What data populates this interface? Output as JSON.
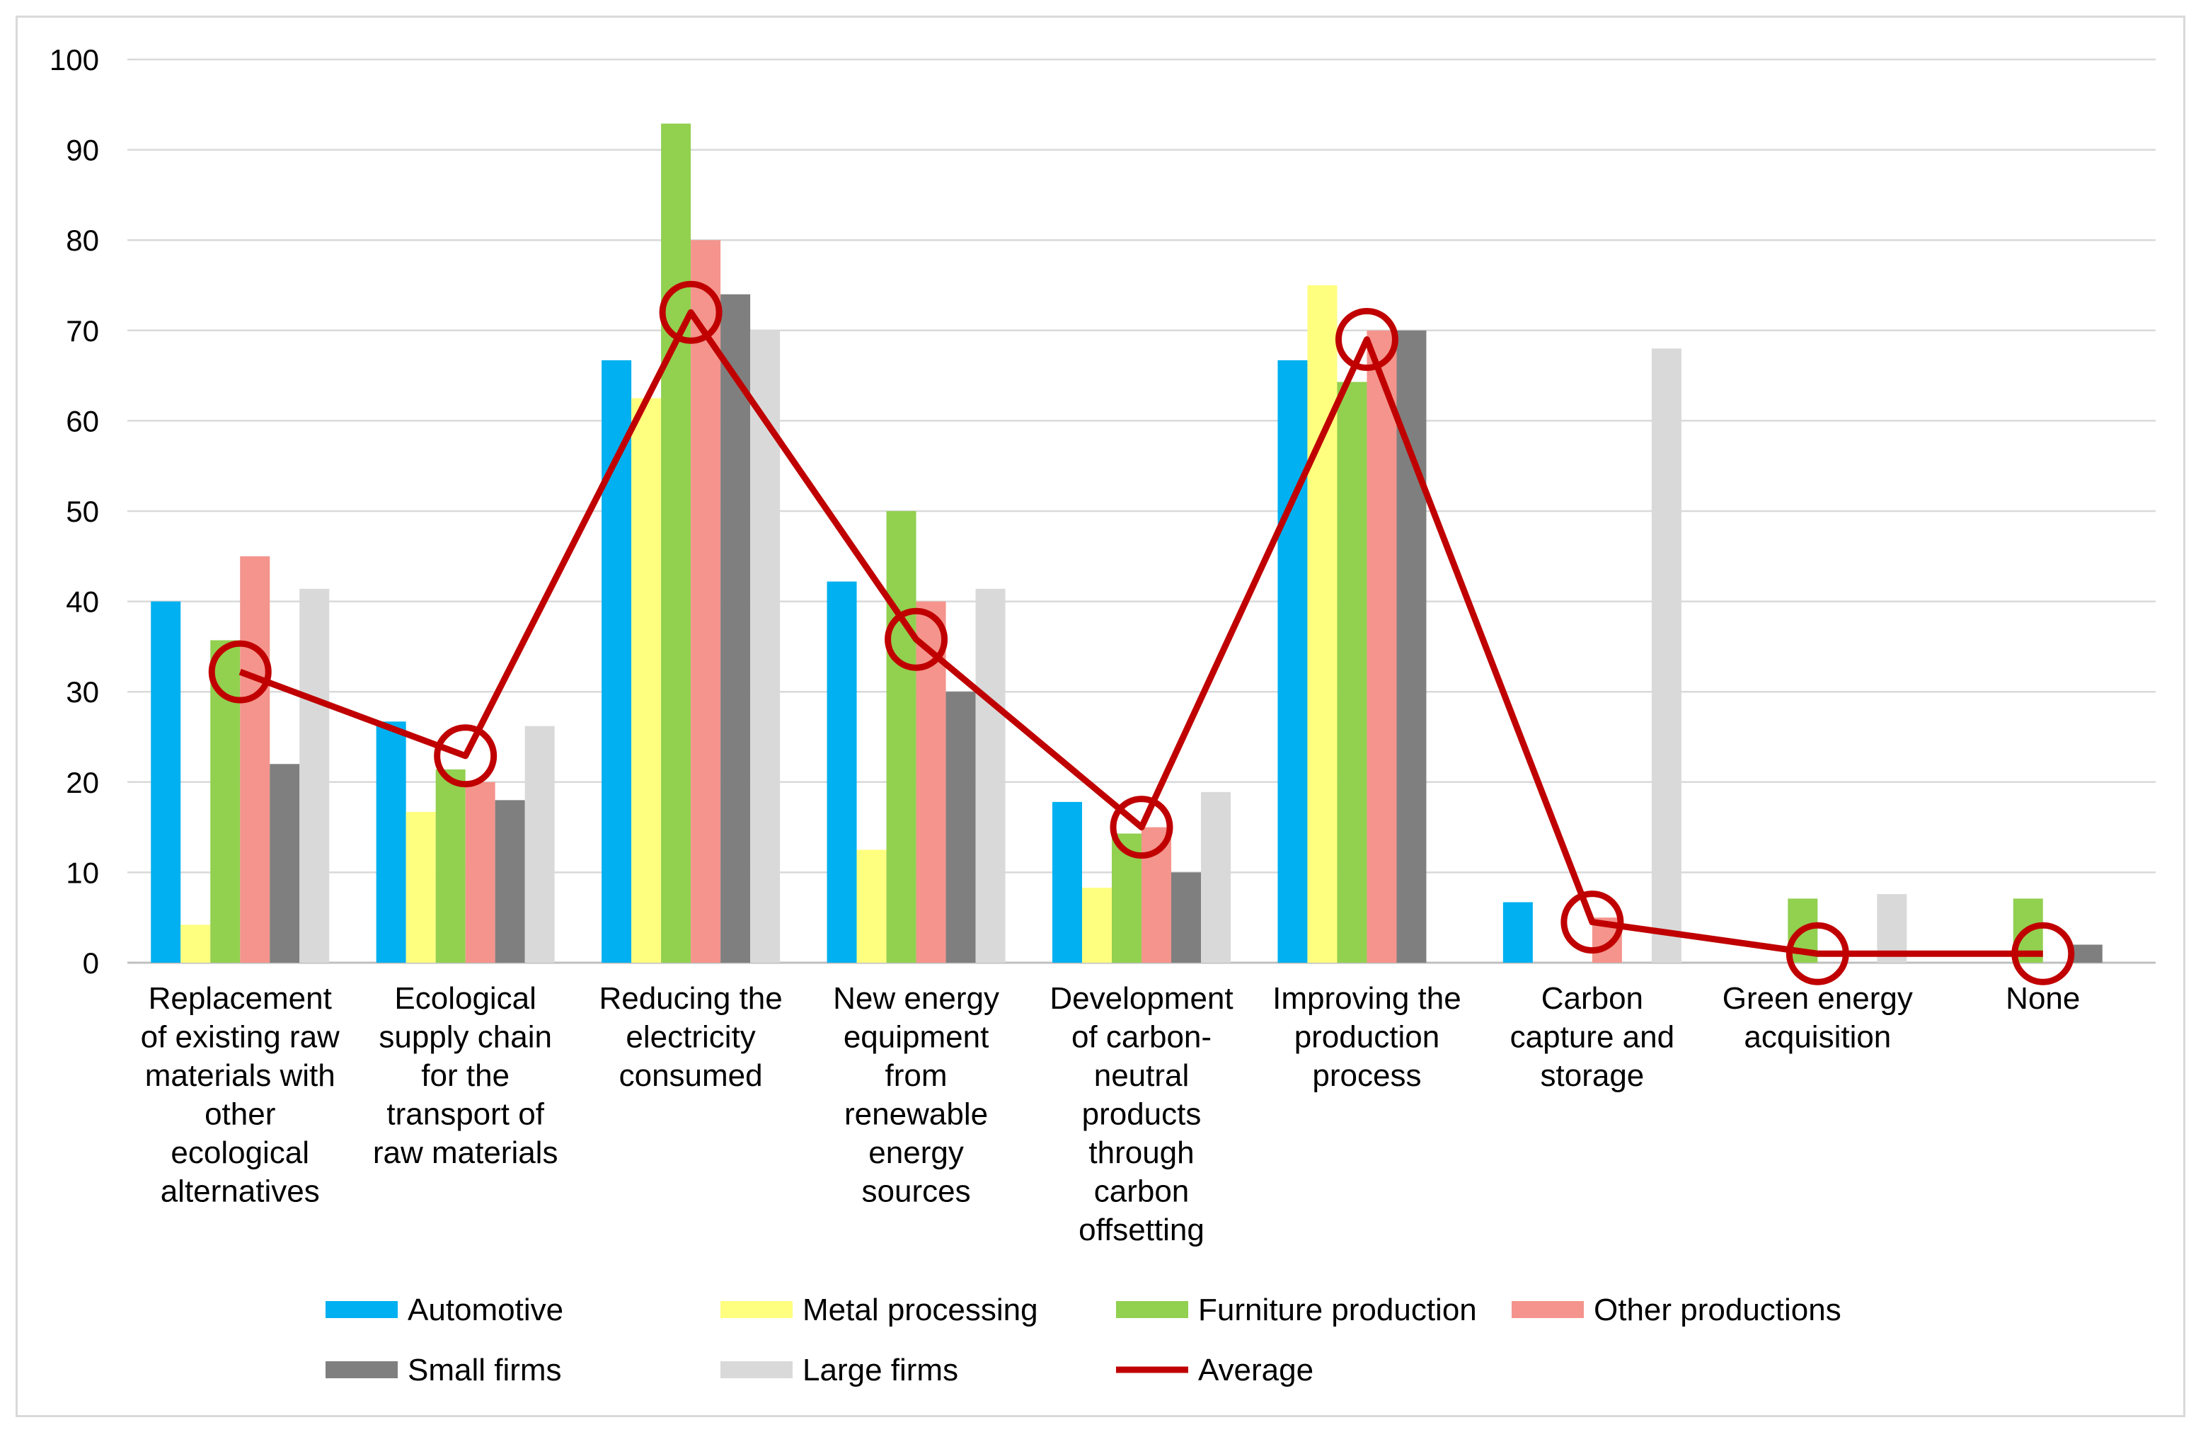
{
  "chart_data": {
    "type": "bar",
    "title": "",
    "xlabel": "",
    "ylabel": "",
    "ylim": [
      0,
      100
    ],
    "yticks": [
      "0",
      "10",
      "20",
      "30",
      "40",
      "50",
      "60",
      "70",
      "80",
      "90",
      "100"
    ],
    "grid": true,
    "legend_position": "bottom",
    "categories": [
      [
        "Replacement",
        "of existing raw",
        "materials with",
        "other",
        "ecological",
        "alternatives"
      ],
      [
        "Ecological",
        "supply chain",
        "for the",
        "transport of",
        "raw materials"
      ],
      [
        "Reducing the",
        "electricity",
        "consumed"
      ],
      [
        "New energy",
        "equipment",
        "from",
        "renewable",
        "energy",
        "sources"
      ],
      [
        "Development",
        "of carbon-",
        "neutral",
        "products",
        "through",
        "carbon",
        "offsetting"
      ],
      [
        "Improving the",
        "production",
        "process"
      ],
      [
        "Carbon",
        "capture and",
        "storage"
      ],
      [
        "Green energy",
        "acquisition"
      ],
      [
        "None"
      ]
    ],
    "series": [
      {
        "name": "Automotive",
        "color": "#00b0f0",
        "values": [
          40,
          26.7,
          66.7,
          42.2,
          17.8,
          66.7,
          6.7,
          0,
          0
        ]
      },
      {
        "name": "Metal processing",
        "color": "#ffff7f",
        "values": [
          4.2,
          16.7,
          62.5,
          12.5,
          8.3,
          75,
          0,
          0,
          0
        ]
      },
      {
        "name": "Furniture production",
        "color": "#92d050",
        "values": [
          35.7,
          21.4,
          92.9,
          50,
          14.3,
          64.3,
          0,
          7.1,
          7.1
        ]
      },
      {
        "name": "Other productions",
        "color": "#f4948c",
        "values": [
          45,
          20,
          80,
          40,
          15,
          70,
          5,
          0,
          0
        ]
      },
      {
        "name": "Small firms",
        "color": "#7f7f7f",
        "values": [
          22,
          18,
          74,
          30,
          10,
          70,
          0,
          0,
          2
        ]
      },
      {
        "name": "Large firms",
        "color": "#d9d9d9",
        "values": [
          41.4,
          26.2,
          70,
          41.4,
          18.9,
          0,
          68,
          7.6,
          0
        ]
      }
    ],
    "line_series": {
      "name": "Average",
      "color": "#c00000",
      "values": [
        32.2,
        22.9,
        72,
        35.8,
        15,
        69,
        4.5,
        1,
        1
      ]
    }
  }
}
